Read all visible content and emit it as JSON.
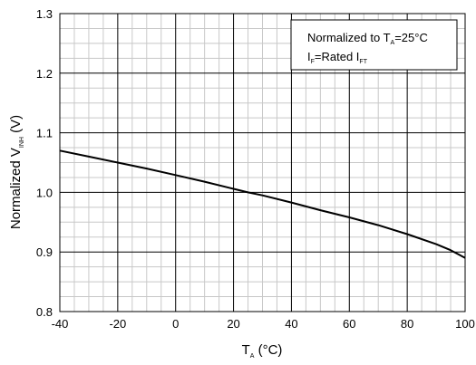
{
  "chart_data": {
    "type": "line",
    "x_range": [
      -40,
      100
    ],
    "y_range": [
      0.8,
      1.3
    ],
    "x_ticks": [
      -40,
      -20,
      0,
      20,
      40,
      60,
      80,
      100
    ],
    "y_ticks": [
      0.8,
      0.9,
      1.0,
      1.1,
      1.2,
      1.3
    ],
    "x_tick_labels": [
      "-40",
      "-20",
      "0",
      "20",
      "40",
      "60",
      "80",
      "100"
    ],
    "y_tick_labels": [
      "0.8",
      "0.9",
      "1.0",
      "1.1",
      "1.2",
      "1.3"
    ],
    "grid": true,
    "minor_grid_divisions": {
      "x": 4,
      "y": 4
    },
    "xlabel": {
      "main": "T",
      "sub": "A",
      "unit": " (°C)"
    },
    "ylabel": {
      "main": "Normalized V",
      "sub": "INH",
      "unit": " (V)"
    },
    "legend": {
      "placement": "top-right",
      "line1": {
        "prefix": "Normalized to T",
        "sub": "A",
        "suffix": "=25°C"
      },
      "line2": {
        "prefix": "I",
        "sub1": "F",
        "mid": "=Rated I",
        "sub2": "FT"
      }
    },
    "series": [
      {
        "color": "#000000",
        "x": [
          -40,
          -30,
          -20,
          -10,
          0,
          10,
          20,
          25,
          30,
          40,
          50,
          60,
          70,
          80,
          90,
          95,
          100
        ],
        "y": [
          1.07,
          1.06,
          1.05,
          1.04,
          1.029,
          1.018,
          1.006,
          1.0,
          0.995,
          0.983,
          0.97,
          0.958,
          0.945,
          0.93,
          0.913,
          0.903,
          0.89
        ]
      }
    ]
  }
}
